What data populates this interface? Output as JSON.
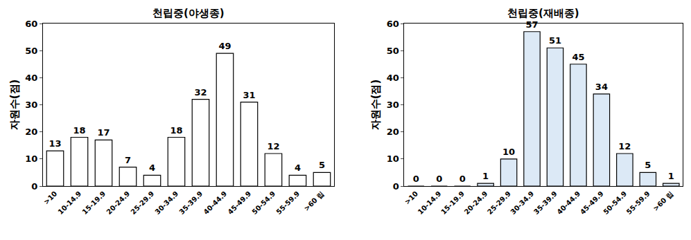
{
  "chart_data": [
    {
      "type": "bar",
      "title": "천립중(야생종)",
      "y_label": "자원수(점)",
      "categories": [
        ">10",
        "10-14.9",
        "15-19.9",
        "20-24.9",
        "25-29.9",
        "30-34.9",
        "35-39.9",
        "40-44.9",
        "45-49.9",
        "50-54.9",
        "55-59.9",
        ">60 립"
      ],
      "values": [
        13,
        18,
        17,
        7,
        4,
        18,
        32,
        49,
        31,
        12,
        4,
        5
      ],
      "color": "#ffffff",
      "ylim": [
        0,
        60
      ],
      "yticks": [
        0,
        10,
        20,
        30,
        40,
        50,
        60
      ],
      "grid": false,
      "data_labels": true
    },
    {
      "type": "bar",
      "title": "천립중(재배종)",
      "y_label": "자원수(점)",
      "categories": [
        ">10",
        "10-14.9",
        "15-19.9",
        "20-24.9",
        "25-29.9",
        "30-34.9",
        "35-39.9",
        "40-44.9",
        "45-49.9",
        "50-54.9",
        "55-59.9",
        ">60 립"
      ],
      "values": [
        0,
        0,
        0,
        1,
        10,
        57,
        51,
        45,
        34,
        12,
        5,
        1
      ],
      "color": "#dce9f6",
      "ylim": [
        0,
        60
      ],
      "yticks": [
        0,
        10,
        20,
        30,
        40,
        50,
        60
      ],
      "grid": false,
      "data_labels": true
    }
  ]
}
